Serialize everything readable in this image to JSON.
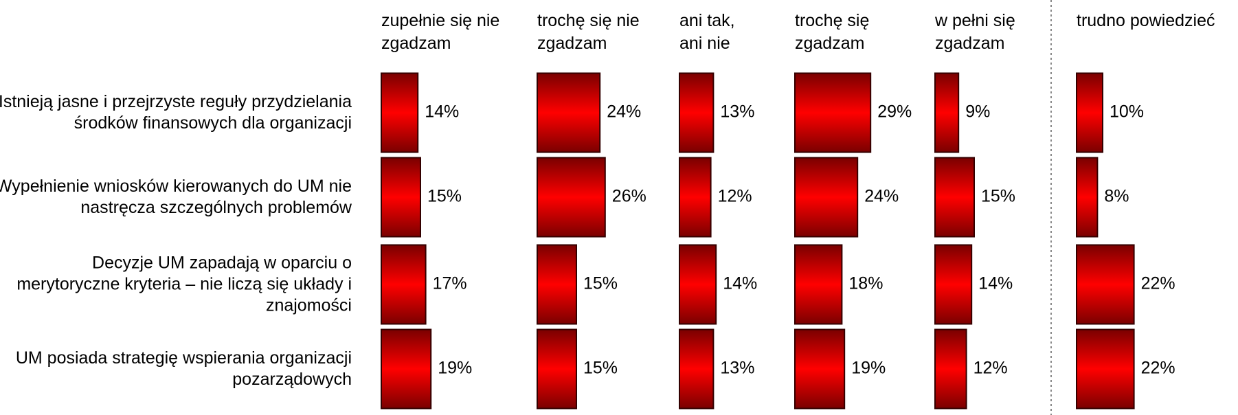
{
  "chart_data": {
    "type": "bar",
    "color": "#ff0000",
    "categories": [
      "Istnieją jasne i przejrzyste reguły przydzielania środków finansowych dla organizacji",
      "Wypełnienie wniosków kierowanych do UM nie nastręcza szczególnych problemów",
      "Decyzje UM zapadają w oparciu o merytoryczne kryteria – nie liczą się układy i znajomości",
      "UM posiada strategię wspierania organizacji pozarządowych"
    ],
    "series": [
      {
        "name": "zupełnie się nie zgadzam",
        "values": [
          14,
          15,
          17,
          19
        ],
        "value_labels": [
          "14%",
          "15%",
          "17%",
          "19%"
        ]
      },
      {
        "name": "trochę się nie zgadzam",
        "values": [
          24,
          26,
          15,
          15
        ],
        "value_labels": [
          "24%",
          "26%",
          "15%",
          "15%"
        ]
      },
      {
        "name": "ani tak, ani nie",
        "values": [
          13,
          12,
          14,
          13
        ],
        "value_labels": [
          "13%",
          "12%",
          "14%",
          "13%"
        ]
      },
      {
        "name": "trochę się zgadzam",
        "values": [
          29,
          24,
          18,
          19
        ],
        "value_labels": [
          "29%",
          "24%",
          "18%",
          "19%"
        ]
      },
      {
        "name": "w pełni się zgadzam",
        "values": [
          9,
          15,
          14,
          12
        ],
        "value_labels": [
          "9%",
          "15%",
          "14%",
          "12%"
        ]
      },
      {
        "name": "trudno powiedzieć",
        "values": [
          10,
          8,
          22,
          22
        ],
        "value_labels": [
          "10%",
          "8%",
          "22%",
          "22%"
        ]
      }
    ]
  }
}
